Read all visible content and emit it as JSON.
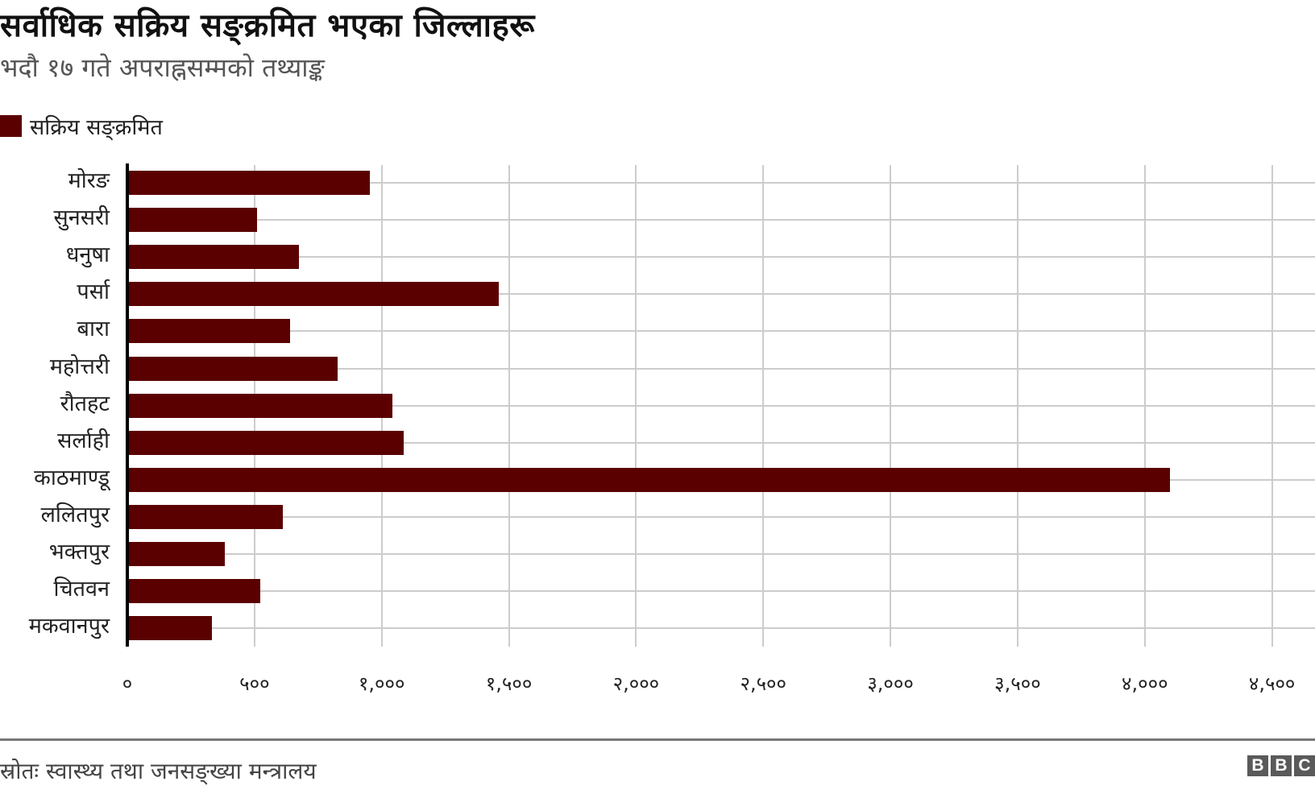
{
  "header": {
    "title": "सर्वाधिक सक्रिय सङ्क्रमित भएका जिल्लाहरू",
    "subtitle": "भदौ १७ गते अपराह्नसम्मको तथ्याङ्क"
  },
  "legend": {
    "label": "सक्रिय सङ्क्रमित",
    "color": "#5a0000"
  },
  "footer": {
    "source": "स्रोतः स्वास्थ्य तथा जनसङ्ख्या मन्त्रालय",
    "logo": [
      "B",
      "B",
      "C"
    ]
  },
  "axis": {
    "ticks": [
      "०",
      "५००",
      "१,०००",
      "१,५००",
      "२,०००",
      "२,५००",
      "३,०००",
      "३,५००",
      "४,०००",
      "४,५००"
    ]
  },
  "chart_data": {
    "type": "bar",
    "orientation": "horizontal",
    "title": "सर्वाधिक सक्रिय सङ्क्रमित भएका जिल्लाहरू",
    "subtitle": "भदौ १७ गते अपराह्नसम्मको तथ्याङ्क",
    "xlabel": "",
    "ylabel": "",
    "xlim": [
      0,
      4500
    ],
    "grid": true,
    "legend_position": "top-left",
    "categories": [
      "मोरङ",
      "सुनसरी",
      "धनुषा",
      "पर्सा",
      "बारा",
      "महोत्तरी",
      "रौतहट",
      "सर्लाही",
      "काठमाण्डू",
      "ललितपुर",
      "भक्तपुर",
      "चितवन",
      "मकवानपुर"
    ],
    "series": [
      {
        "name": "सक्रिय सङ्क्रमित",
        "color": "#5a0000",
        "values": [
          952,
          510,
          674,
          1460,
          640,
          826,
          1041,
          1085,
          4098,
          610,
          383,
          522,
          333
        ]
      }
    ],
    "source": "स्रोतः स्वास्थ्य तथा जनसङ्ख्या मन्त्रालय"
  }
}
